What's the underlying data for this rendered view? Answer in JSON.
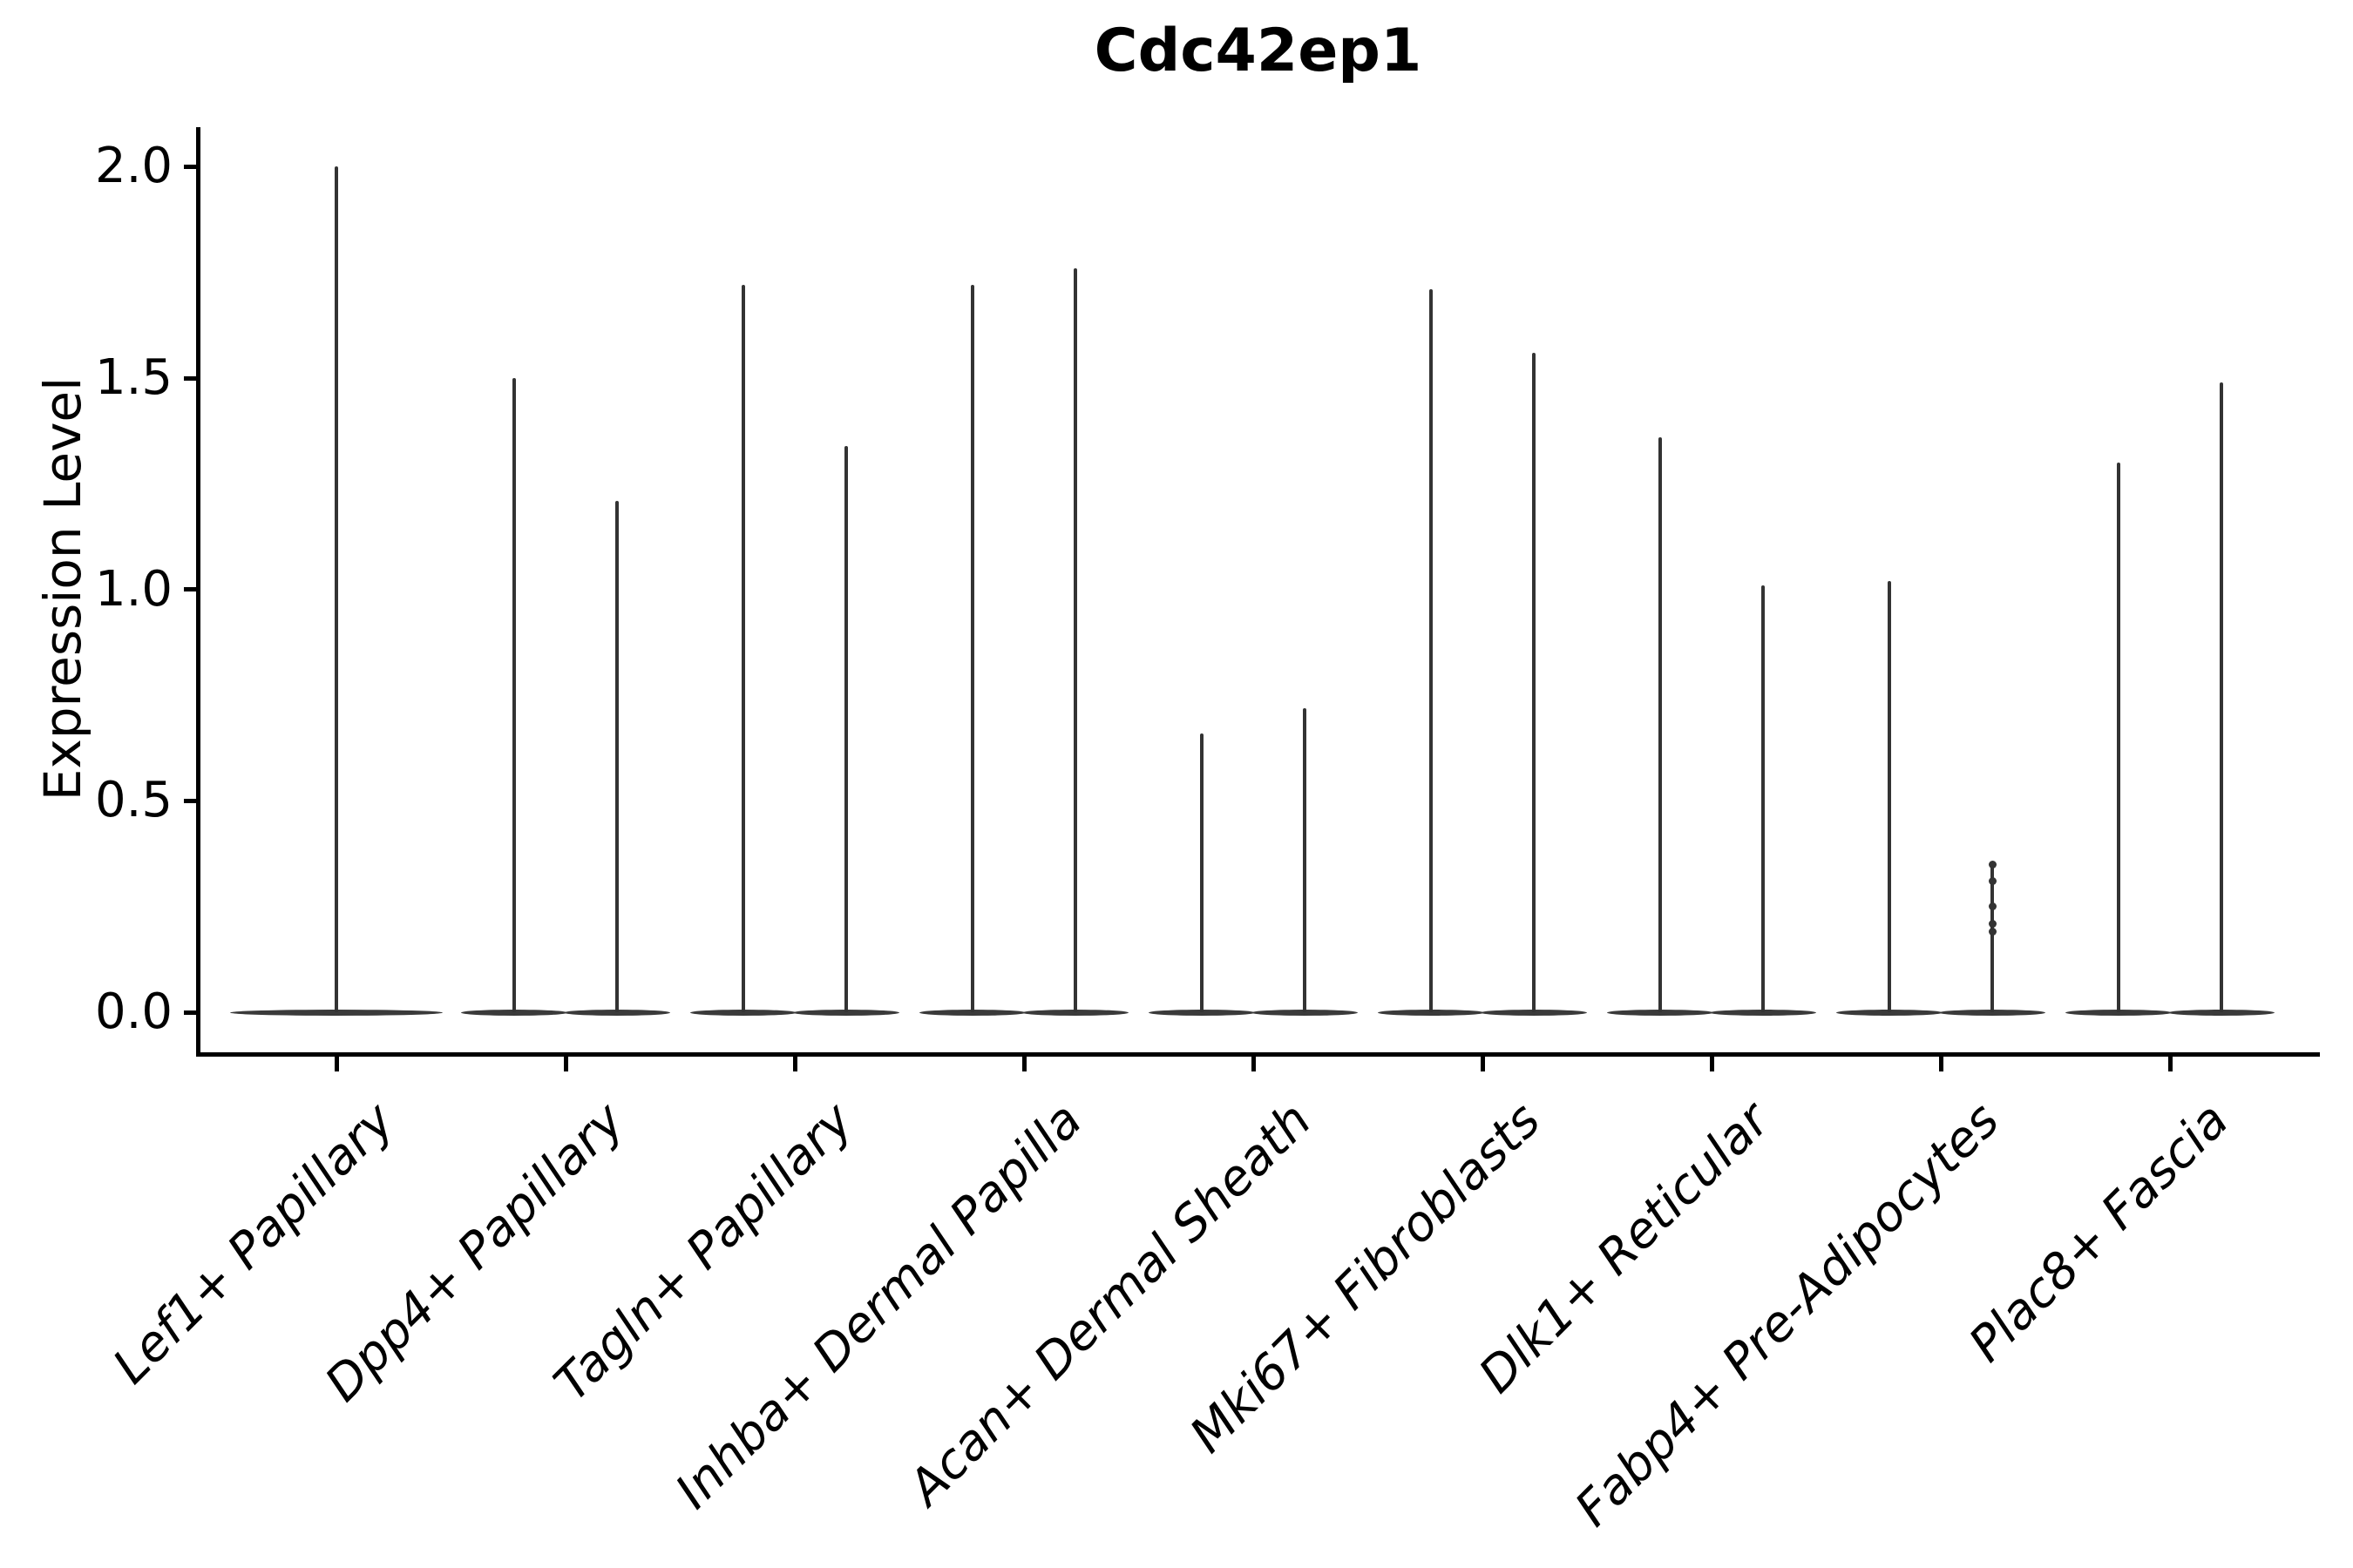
{
  "chart_data": {
    "type": "violin",
    "title": "Cdc42ep1",
    "xlabel": "",
    "ylabel": "Expression Level",
    "ylim": [
      0.0,
      2.0
    ],
    "yticks": [
      0.0,
      0.5,
      1.0,
      1.5,
      2.0
    ],
    "grid": false,
    "legend": "none",
    "categories": [
      "Lef1+ Papillary",
      "Dpp4+ Papillary",
      "Tagln+ Papillary",
      "Inhba+ Dermal Papilla",
      "Acan+ Dermal Sheath",
      "Mki67+ Fibroblasts",
      "Dlk1+ Reticular",
      "Fabp4+ Pre-Adipocytes",
      "Plac8+ Fascia"
    ],
    "violin_color": "#333333",
    "description": "Each violin is extremely wide at expression 0 (flat pancake at baseline) with a thin density spike rising to the maximum expression value. Category 1 has a single full-width violin; categories 2-9 each contain two half-width violins side by side.",
    "violins": [
      {
        "category": "Lef1+ Papillary",
        "position": "center",
        "baseline": 0.0,
        "max_expression": 2.0
      },
      {
        "category": "Dpp4+ Papillary",
        "position": "left",
        "baseline": 0.0,
        "max_expression": 1.5
      },
      {
        "category": "Dpp4+ Papillary",
        "position": "right",
        "baseline": 0.0,
        "max_expression": 1.21
      },
      {
        "category": "Tagln+ Papillary",
        "position": "left",
        "baseline": 0.0,
        "max_expression": 1.72
      },
      {
        "category": "Tagln+ Papillary",
        "position": "right",
        "baseline": 0.0,
        "max_expression": 1.34
      },
      {
        "category": "Inhba+ Dermal Papilla",
        "position": "left",
        "baseline": 0.0,
        "max_expression": 1.72
      },
      {
        "category": "Inhba+ Dermal Papilla",
        "position": "right",
        "baseline": 0.0,
        "max_expression": 1.76
      },
      {
        "category": "Acan+ Dermal Sheath",
        "position": "left",
        "baseline": 0.0,
        "max_expression": 0.66
      },
      {
        "category": "Acan+ Dermal Sheath",
        "position": "right",
        "baseline": 0.0,
        "max_expression": 0.72
      },
      {
        "category": "Mki67+ Fibroblasts",
        "position": "left",
        "baseline": 0.0,
        "max_expression": 1.71
      },
      {
        "category": "Mki67+ Fibroblasts",
        "position": "right",
        "baseline": 0.0,
        "max_expression": 1.56
      },
      {
        "category": "Dlk1+ Reticular",
        "position": "left",
        "baseline": 0.0,
        "max_expression": 1.36
      },
      {
        "category": "Dlk1+ Reticular",
        "position": "right",
        "baseline": 0.0,
        "max_expression": 1.01
      },
      {
        "category": "Fabp4+ Pre-Adipocytes",
        "position": "left",
        "baseline": 0.0,
        "max_expression": 1.02
      },
      {
        "category": "Fabp4+ Pre-Adipocytes",
        "position": "right",
        "baseline": 0.0,
        "max_expression": 0.35,
        "visible_points": [
          0.35,
          0.31,
          0.25,
          0.21,
          0.19
        ]
      },
      {
        "category": "Plac8+ Fascia",
        "position": "left",
        "baseline": 0.0,
        "max_expression": 1.3
      },
      {
        "category": "Plac8+ Fascia",
        "position": "right",
        "baseline": 0.0,
        "max_expression": 1.49
      }
    ]
  }
}
